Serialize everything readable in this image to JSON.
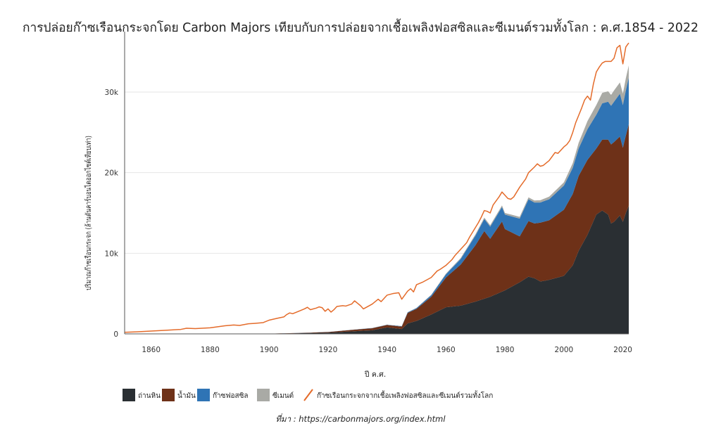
{
  "chart_data": {
    "type": "area",
    "title": "การปล่อยก๊าซเรือนกระจกโดย Carbon Majors เทียบกับการปล่อยจากเชื้อเพลิงฟอสซิลและซีเมนต์รวมทั้งโลก : ค.ศ.1854 - 2022",
    "xlabel": "ปี ค.ศ.",
    "ylabel": "ปริมาณก๊าซเรือนกระจก (ล้านตันคาร์บอนไดออกไซด์เทียบเท่า)",
    "xlim": [
      1851,
      2022
    ],
    "ylim": [
      0,
      37500
    ],
    "x_ticks": [
      1860,
      1880,
      1900,
      1920,
      1940,
      1960,
      1980,
      2000,
      2020
    ],
    "x_tick_labels": [
      "1860",
      "1880",
      "1900",
      "1920",
      "1940",
      "1960",
      "1980",
      "2000",
      "2020"
    ],
    "y_ticks": [
      0,
      10000,
      20000,
      30000
    ],
    "y_tick_labels": [
      "0",
      "10k",
      "20k",
      "30k"
    ],
    "grid": "horizontal",
    "legend_position": "bottom-left",
    "stacked_series": [
      {
        "name": "ถ่านหิน",
        "color": "#2a2f33",
        "points": [
          [
            1854,
            0
          ],
          [
            1880,
            0
          ],
          [
            1900,
            20
          ],
          [
            1910,
            80
          ],
          [
            1920,
            150
          ],
          [
            1930,
            350
          ],
          [
            1935,
            450
          ],
          [
            1940,
            800
          ],
          [
            1945,
            600
          ],
          [
            1947,
            1300
          ],
          [
            1950,
            1600
          ],
          [
            1955,
            2400
          ],
          [
            1960,
            3300
          ],
          [
            1965,
            3500
          ],
          [
            1970,
            4000
          ],
          [
            1975,
            4600
          ],
          [
            1980,
            5400
          ],
          [
            1985,
            6400
          ],
          [
            1988,
            7100
          ],
          [
            1990,
            6900
          ],
          [
            1992,
            6500
          ],
          [
            1995,
            6700
          ],
          [
            2000,
            7200
          ],
          [
            2003,
            8500
          ],
          [
            2005,
            10300
          ],
          [
            2008,
            12300
          ],
          [
            2011,
            14800
          ],
          [
            2013,
            15300
          ],
          [
            2015,
            14800
          ],
          [
            2016,
            13700
          ],
          [
            2017,
            13900
          ],
          [
            2019,
            14700
          ],
          [
            2020,
            13900
          ],
          [
            2021,
            15000
          ],
          [
            2022,
            15900
          ]
        ]
      },
      {
        "name": "น้ำมัน",
        "color": "#6e3118",
        "points": [
          [
            1854,
            0
          ],
          [
            1880,
            0
          ],
          [
            1900,
            10
          ],
          [
            1910,
            30
          ],
          [
            1920,
            80
          ],
          [
            1930,
            200
          ],
          [
            1935,
            250
          ],
          [
            1940,
            300
          ],
          [
            1945,
            300
          ],
          [
            1947,
            1300
          ],
          [
            1950,
            1500
          ],
          [
            1955,
            2200
          ],
          [
            1960,
            3700
          ],
          [
            1965,
            5100
          ],
          [
            1970,
            7000
          ],
          [
            1973,
            8400
          ],
          [
            1975,
            7200
          ],
          [
            1979,
            8700
          ],
          [
            1980,
            7600
          ],
          [
            1985,
            5700
          ],
          [
            1988,
            6900
          ],
          [
            1990,
            6800
          ],
          [
            1992,
            7300
          ],
          [
            1995,
            7400
          ],
          [
            2000,
            8200
          ],
          [
            2005,
            9300
          ],
          [
            2008,
            9300
          ],
          [
            2011,
            8200
          ],
          [
            2013,
            8800
          ],
          [
            2015,
            9300
          ],
          [
            2016,
            9800
          ],
          [
            2017,
            9900
          ],
          [
            2019,
            9800
          ],
          [
            2020,
            9200
          ],
          [
            2021,
            9600
          ],
          [
            2022,
            10100
          ]
        ]
      },
      {
        "name": "ก๊าซฟอสซิล",
        "color": "#2f74b5",
        "points": [
          [
            1854,
            0
          ],
          [
            1900,
            0
          ],
          [
            1920,
            10
          ],
          [
            1930,
            20
          ],
          [
            1940,
            30
          ],
          [
            1945,
            50
          ],
          [
            1950,
            100
          ],
          [
            1955,
            200
          ],
          [
            1960,
            400
          ],
          [
            1965,
            700
          ],
          [
            1970,
            1200
          ],
          [
            1973,
            1500
          ],
          [
            1975,
            1500
          ],
          [
            1979,
            1800
          ],
          [
            1980,
            1800
          ],
          [
            1985,
            2200
          ],
          [
            1988,
            2700
          ],
          [
            1990,
            2600
          ],
          [
            1992,
            2500
          ],
          [
            1995,
            2600
          ],
          [
            2000,
            3000
          ],
          [
            2005,
            3400
          ],
          [
            2008,
            3800
          ],
          [
            2011,
            4200
          ],
          [
            2013,
            4500
          ],
          [
            2015,
            4700
          ],
          [
            2016,
            4800
          ],
          [
            2017,
            5000
          ],
          [
            2019,
            5300
          ],
          [
            2020,
            5300
          ],
          [
            2021,
            5600
          ],
          [
            2022,
            5800
          ]
        ]
      },
      {
        "name": "ซีเมนต์",
        "color": "#a9aaa5",
        "points": [
          [
            1854,
            0
          ],
          [
            1920,
            0
          ],
          [
            1930,
            10
          ],
          [
            1940,
            20
          ],
          [
            1950,
            30
          ],
          [
            1960,
            80
          ],
          [
            1970,
            150
          ],
          [
            1980,
            200
          ],
          [
            1990,
            250
          ],
          [
            2000,
            400
          ],
          [
            2005,
            700
          ],
          [
            2008,
            1000
          ],
          [
            2011,
            1200
          ],
          [
            2013,
            1300
          ],
          [
            2015,
            1300
          ],
          [
            2017,
            1400
          ],
          [
            2019,
            1400
          ],
          [
            2020,
            1400
          ],
          [
            2021,
            1500
          ],
          [
            2022,
            1500
          ]
        ]
      }
    ],
    "line_series": {
      "name": "ก๊าซเรือนกระจกจากเชื้อเพลิงฟอสซิลและซีเมนต์รวมทั้งโลก",
      "color": "#e46b2a",
      "points": [
        [
          1851,
          200
        ],
        [
          1855,
          250
        ],
        [
          1860,
          350
        ],
        [
          1865,
          450
        ],
        [
          1870,
          550
        ],
        [
          1872,
          700
        ],
        [
          1875,
          650
        ],
        [
          1880,
          750
        ],
        [
          1885,
          1000
        ],
        [
          1888,
          1100
        ],
        [
          1890,
          1050
        ],
        [
          1893,
          1250
        ],
        [
          1895,
          1300
        ],
        [
          1898,
          1400
        ],
        [
          1900,
          1700
        ],
        [
          1903,
          1950
        ],
        [
          1905,
          2100
        ],
        [
          1906,
          2400
        ],
        [
          1907,
          2600
        ],
        [
          1908,
          2500
        ],
        [
          1910,
          2800
        ],
        [
          1912,
          3100
        ],
        [
          1913,
          3300
        ],
        [
          1914,
          3000
        ],
        [
          1916,
          3200
        ],
        [
          1917,
          3350
        ],
        [
          1918,
          3250
        ],
        [
          1919,
          2800
        ],
        [
          1920,
          3100
        ],
        [
          1921,
          2700
        ],
        [
          1922,
          3000
        ],
        [
          1923,
          3400
        ],
        [
          1925,
          3500
        ],
        [
          1926,
          3450
        ],
        [
          1928,
          3700
        ],
        [
          1929,
          4100
        ],
        [
          1930,
          3800
        ],
        [
          1931,
          3500
        ],
        [
          1932,
          3100
        ],
        [
          1933,
          3300
        ],
        [
          1935,
          3700
        ],
        [
          1937,
          4300
        ],
        [
          1938,
          4000
        ],
        [
          1940,
          4800
        ],
        [
          1942,
          5000
        ],
        [
          1944,
          5100
        ],
        [
          1945,
          4300
        ],
        [
          1946,
          4800
        ],
        [
          1947,
          5300
        ],
        [
          1948,
          5600
        ],
        [
          1949,
          5200
        ],
        [
          1950,
          6100
        ],
        [
          1952,
          6400
        ],
        [
          1955,
          7000
        ],
        [
          1957,
          7800
        ],
        [
          1958,
          8000
        ],
        [
          1960,
          8500
        ],
        [
          1962,
          9200
        ],
        [
          1963,
          9700
        ],
        [
          1965,
          10500
        ],
        [
          1967,
          11300
        ],
        [
          1968,
          12000
        ],
        [
          1970,
          13200
        ],
        [
          1971,
          13800
        ],
        [
          1972,
          14500
        ],
        [
          1973,
          15300
        ],
        [
          1974,
          15200
        ],
        [
          1975,
          15000
        ],
        [
          1976,
          16000
        ],
        [
          1977,
          16500
        ],
        [
          1978,
          17000
        ],
        [
          1979,
          17600
        ],
        [
          1980,
          17200
        ],
        [
          1981,
          16800
        ],
        [
          1982,
          16700
        ],
        [
          1983,
          17000
        ],
        [
          1985,
          18200
        ],
        [
          1987,
          19200
        ],
        [
          1988,
          20000
        ],
        [
          1990,
          20700
        ],
        [
          1991,
          21100
        ],
        [
          1992,
          20800
        ],
        [
          1993,
          20900
        ],
        [
          1995,
          21500
        ],
        [
          1997,
          22500
        ],
        [
          1998,
          22400
        ],
        [
          2000,
          23200
        ],
        [
          2001,
          23500
        ],
        [
          2002,
          24000
        ],
        [
          2003,
          25000
        ],
        [
          2004,
          26200
        ],
        [
          2005,
          27100
        ],
        [
          2006,
          28000
        ],
        [
          2007,
          29000
        ],
        [
          2008,
          29500
        ],
        [
          2009,
          29000
        ],
        [
          2010,
          31000
        ],
        [
          2011,
          32500
        ],
        [
          2012,
          33100
        ],
        [
          2013,
          33600
        ],
        [
          2014,
          33800
        ],
        [
          2015,
          33800
        ],
        [
          2016,
          33800
        ],
        [
          2017,
          34200
        ],
        [
          2018,
          35500
        ],
        [
          2019,
          35800
        ],
        [
          2020,
          33500
        ],
        [
          2021,
          35600
        ],
        [
          2022,
          36100
        ]
      ]
    },
    "legend": [
      {
        "name": "ถ่านหิน",
        "kind": "swatch",
        "color": "#2a2f33"
      },
      {
        "name": "น้ำมัน",
        "kind": "swatch",
        "color": "#6e3118"
      },
      {
        "name": "ก๊าซฟอสซิล",
        "kind": "swatch",
        "color": "#2f74b5"
      },
      {
        "name": "ซีเมนต์",
        "kind": "swatch",
        "color": "#a9aaa5"
      },
      {
        "name": "ก๊าซเรือนกระจกจากเชื้อเพลิงฟอสซิลและซีเมนต์รวมทั้งโลก",
        "kind": "line",
        "color": "#e46b2a"
      }
    ],
    "source": "ที่มา : https://carbonmajors.org/index.html"
  }
}
